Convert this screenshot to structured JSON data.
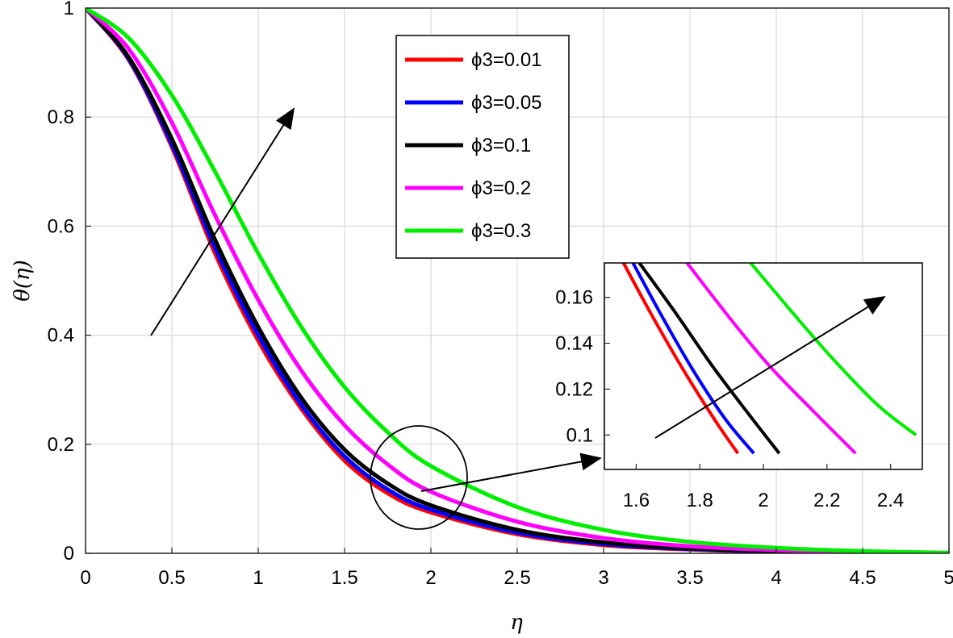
{
  "chart_data": [
    {
      "type": "line",
      "xlabel": "η",
      "ylabel": "θ(η)",
      "xlim": [
        0,
        5
      ],
      "ylim": [
        0,
        1
      ],
      "grid": true,
      "legend_position": "top-center",
      "xticks": [
        "0",
        "0.5",
        "1",
        "1.5",
        "2",
        "2.5",
        "3",
        "3.5",
        "4",
        "4.5",
        "5"
      ],
      "yticks": [
        "0",
        "0.2",
        "0.4",
        "0.6",
        "0.8",
        "1"
      ],
      "series": [
        {
          "name": "ϕ3=0.01",
          "color": "#ff0000",
          "x": [
            0,
            0.25,
            0.5,
            0.75,
            1.0,
            1.25,
            1.5,
            1.75,
            2.0,
            2.5,
            3.0,
            3.5,
            4.0,
            4.5,
            5.0
          ],
          "y": [
            1.0,
            0.905,
            0.745,
            0.55,
            0.39,
            0.265,
            0.17,
            0.11,
            0.075,
            0.035,
            0.015,
            0.007,
            0.003,
            0.001,
            0.0
          ]
        },
        {
          "name": "ϕ3=0.05",
          "color": "#0000ff",
          "x": [
            0,
            0.25,
            0.5,
            0.75,
            1.0,
            1.25,
            1.5,
            1.75,
            2.0,
            2.5,
            3.0,
            3.5,
            4.0,
            4.5,
            5.0
          ],
          "y": [
            1.0,
            0.907,
            0.75,
            0.56,
            0.4,
            0.272,
            0.178,
            0.117,
            0.08,
            0.038,
            0.017,
            0.008,
            0.003,
            0.001,
            0.0
          ]
        },
        {
          "name": "ϕ3=0.1",
          "color": "#000000",
          "x": [
            0,
            0.25,
            0.5,
            0.75,
            1.0,
            1.25,
            1.5,
            1.75,
            2.0,
            2.5,
            3.0,
            3.5,
            4.0,
            4.5,
            5.0
          ],
          "y": [
            1.0,
            0.91,
            0.76,
            0.575,
            0.415,
            0.285,
            0.19,
            0.128,
            0.088,
            0.043,
            0.02,
            0.009,
            0.004,
            0.0015,
            0.0
          ]
        },
        {
          "name": "ϕ3=0.2",
          "color": "#ff00ff",
          "x": [
            0,
            0.25,
            0.5,
            0.75,
            1.0,
            1.25,
            1.5,
            1.75,
            2.0,
            2.5,
            3.0,
            3.5,
            4.0,
            4.5,
            5.0
          ],
          "y": [
            1.0,
            0.925,
            0.79,
            0.62,
            0.465,
            0.335,
            0.235,
            0.163,
            0.113,
            0.058,
            0.028,
            0.013,
            0.006,
            0.0025,
            0.001
          ]
        },
        {
          "name": "ϕ3=0.3",
          "color": "#00ee00",
          "x": [
            0,
            0.25,
            0.5,
            0.75,
            1.0,
            1.25,
            1.5,
            1.75,
            2.0,
            2.5,
            3.0,
            3.5,
            4.0,
            4.5,
            5.0
          ],
          "y": [
            1.0,
            0.945,
            0.84,
            0.7,
            0.55,
            0.415,
            0.305,
            0.222,
            0.16,
            0.085,
            0.043,
            0.021,
            0.01,
            0.004,
            0.001
          ]
        }
      ]
    },
    {
      "type": "line",
      "xlim": [
        1.5,
        2.5
      ],
      "ylim": [
        0.085,
        0.175
      ],
      "grid": false,
      "xticks": [
        "1.6",
        "1.8",
        "2",
        "2.2",
        "2.4"
      ],
      "yticks": [
        "0.1",
        "0.12",
        "0.14",
        "0.16"
      ],
      "series": [
        {
          "name": "ϕ3=0.01",
          "color": "#ff0000",
          "x": [
            1.56,
            1.65,
            1.75,
            1.85,
            1.92
          ],
          "y": [
            0.175,
            0.152,
            0.128,
            0.106,
            0.092
          ]
        },
        {
          "name": "ϕ3=0.05",
          "color": "#0000ff",
          "x": [
            1.59,
            1.68,
            1.78,
            1.88,
            1.97
          ],
          "y": [
            0.175,
            0.152,
            0.128,
            0.107,
            0.092
          ]
        },
        {
          "name": "ϕ3=0.1",
          "color": "#000000",
          "x": [
            1.61,
            1.72,
            1.84,
            1.96,
            2.05
          ],
          "y": [
            0.175,
            0.154,
            0.13,
            0.108,
            0.092
          ]
        },
        {
          "name": "ϕ3=0.2",
          "color": "#ff00ff",
          "x": [
            1.76,
            1.9,
            2.02,
            2.16,
            2.29
          ],
          "y": [
            0.175,
            0.15,
            0.13,
            0.11,
            0.092
          ]
        },
        {
          "name": "ϕ3=0.3",
          "color": "#00ee00",
          "x": [
            1.96,
            2.1,
            2.22,
            2.36,
            2.48
          ],
          "y": [
            0.175,
            0.152,
            0.133,
            0.113,
            0.1
          ]
        }
      ]
    }
  ]
}
